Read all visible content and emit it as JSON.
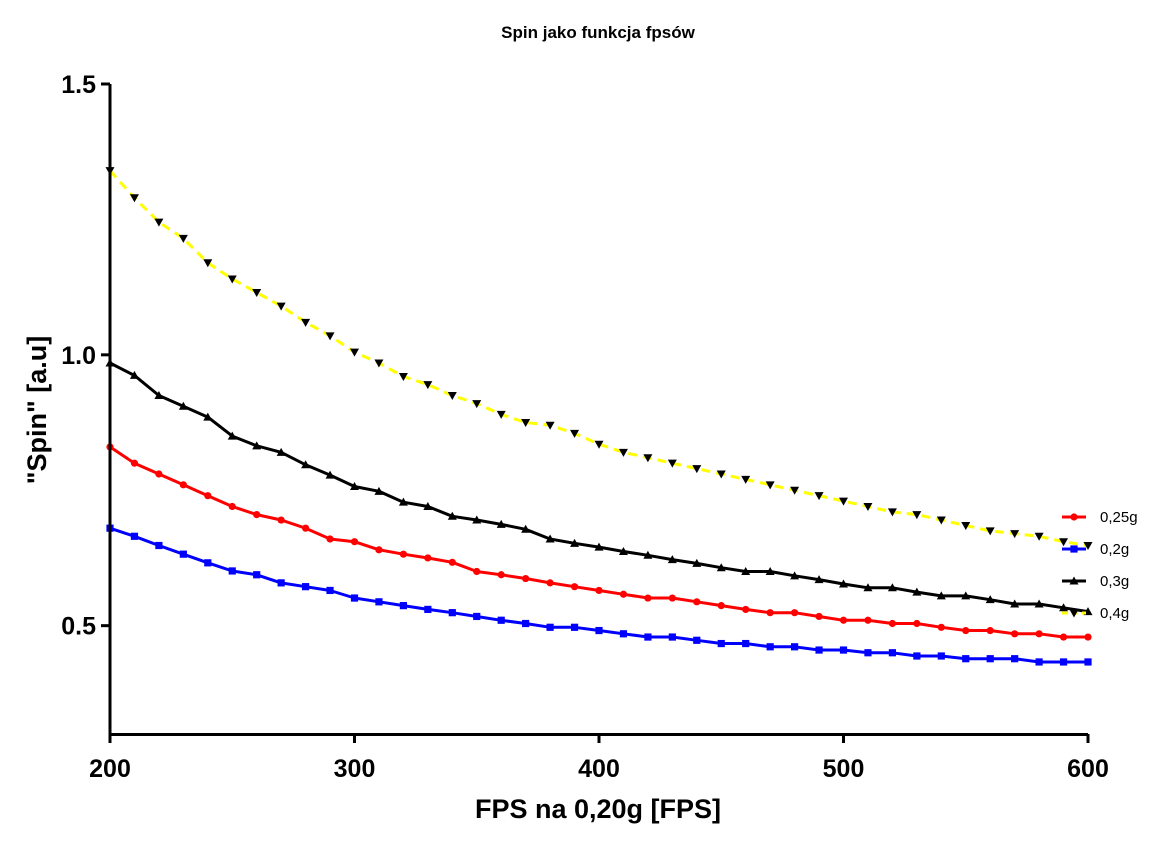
{
  "chart_data": {
    "type": "line",
    "title": "Spin jako funkcja fpsów",
    "xlabel": "FPS na 0,20g [FPS]",
    "ylabel": "\"Spin\" [a.u]",
    "xlim": [
      200,
      600
    ],
    "ylim": [
      0.3,
      1.5
    ],
    "x_ticks": [
      "200",
      "300",
      "400",
      "500",
      "600"
    ],
    "y_ticks": [
      "0.5",
      "1.0",
      "1.5"
    ],
    "legend_position": "right",
    "grid": false,
    "x": [
      200,
      210,
      220,
      230,
      240,
      250,
      260,
      270,
      280,
      290,
      300,
      310,
      320,
      330,
      340,
      350,
      360,
      370,
      380,
      390,
      400,
      410,
      420,
      430,
      440,
      450,
      460,
      470,
      480,
      490,
      500,
      510,
      520,
      530,
      540,
      550,
      560,
      570,
      580,
      590,
      600
    ],
    "series": [
      {
        "name": "0,25g",
        "color": "#ff0000",
        "line_style": "solid",
        "marker": "circle",
        "values": [
          0.83,
          0.8,
          0.78,
          0.76,
          0.74,
          0.72,
          0.705,
          0.695,
          0.68,
          0.66,
          0.655,
          0.64,
          0.632,
          0.625,
          0.617,
          0.6,
          0.594,
          0.587,
          0.579,
          0.572,
          0.565,
          0.558,
          0.551,
          0.551,
          0.544,
          0.537,
          0.53,
          0.524,
          0.524,
          0.517,
          0.51,
          0.51,
          0.504,
          0.504,
          0.497,
          0.491,
          0.491,
          0.485,
          0.485,
          0.479,
          0.479
        ]
      },
      {
        "name": "0,2g",
        "color": "#0000ff",
        "line_style": "solid",
        "marker": "square",
        "values": [
          0.68,
          0.665,
          0.648,
          0.632,
          0.616,
          0.601,
          0.594,
          0.579,
          0.572,
          0.565,
          0.551,
          0.544,
          0.537,
          0.53,
          0.524,
          0.517,
          0.51,
          0.504,
          0.497,
          0.497,
          0.491,
          0.485,
          0.479,
          0.479,
          0.473,
          0.467,
          0.467,
          0.461,
          0.461,
          0.455,
          0.455,
          0.45,
          0.45,
          0.444,
          0.444,
          0.439,
          0.439,
          0.439,
          0.433,
          0.433,
          0.433
        ]
      },
      {
        "name": "0,3g",
        "color": "#000000",
        "line_style": "solid",
        "marker": "triangle-up",
        "values": [
          0.985,
          0.962,
          0.925,
          0.905,
          0.885,
          0.85,
          0.832,
          0.82,
          0.797,
          0.778,
          0.757,
          0.748,
          0.728,
          0.72,
          0.702,
          0.695,
          0.687,
          0.678,
          0.66,
          0.652,
          0.645,
          0.637,
          0.63,
          0.622,
          0.615,
          0.607,
          0.6,
          0.6,
          0.592,
          0.585,
          0.577,
          0.57,
          0.57,
          0.562,
          0.555,
          0.555,
          0.548,
          0.54,
          0.54,
          0.533,
          0.526
        ]
      },
      {
        "name": "0,4g",
        "color": "#ffff00",
        "line_style": "dashed",
        "marker": "triangle-down",
        "marker_color": "#000000",
        "values": [
          1.34,
          1.29,
          1.245,
          1.215,
          1.17,
          1.14,
          1.115,
          1.09,
          1.06,
          1.035,
          1.005,
          0.985,
          0.96,
          0.945,
          0.925,
          0.91,
          0.89,
          0.875,
          0.87,
          0.855,
          0.835,
          0.82,
          0.81,
          0.8,
          0.79,
          0.78,
          0.77,
          0.76,
          0.75,
          0.74,
          0.73,
          0.72,
          0.71,
          0.705,
          0.695,
          0.685,
          0.675,
          0.67,
          0.665,
          0.655,
          0.648
        ]
      }
    ]
  }
}
